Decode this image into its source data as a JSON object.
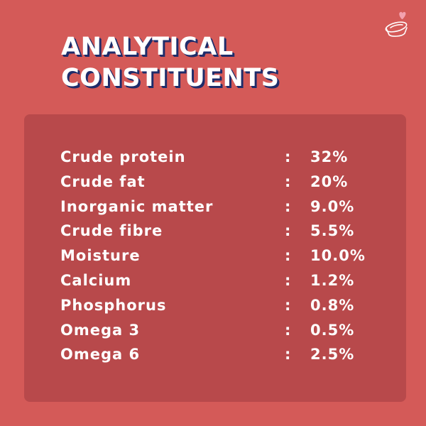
{
  "colors": {
    "background": "#d45a58",
    "panel": "#b8494b",
    "title_shadow": "#1e2c6a",
    "text": "#ffffff",
    "logo_heart": "#f3a1ae"
  },
  "logo": {
    "icon": "pet-bowl-heart-icon"
  },
  "title": {
    "line1": "ANALYTICAL",
    "line2": "CONSTITUENTS"
  },
  "constituents": [
    {
      "label": "Crude protein",
      "sep": ":",
      "value": "32%"
    },
    {
      "label": "Crude fat",
      "sep": ":",
      "value": "20%"
    },
    {
      "label": "Inorganic matter",
      "sep": ":",
      "value": "9.0%"
    },
    {
      "label": "Crude fibre",
      "sep": ":",
      "value": "5.5%"
    },
    {
      "label": "Moisture",
      "sep": ":",
      "value": "10.0%"
    },
    {
      "label": "Calcium",
      "sep": ":",
      "value": "1.2%"
    },
    {
      "label": "Phosphorus",
      "sep": ":",
      "value": "0.8%"
    },
    {
      "label": "Omega 3",
      "sep": ":",
      "value": "0.5%"
    },
    {
      "label": "Omega 6",
      "sep": ":",
      "value": "2.5%"
    }
  ]
}
